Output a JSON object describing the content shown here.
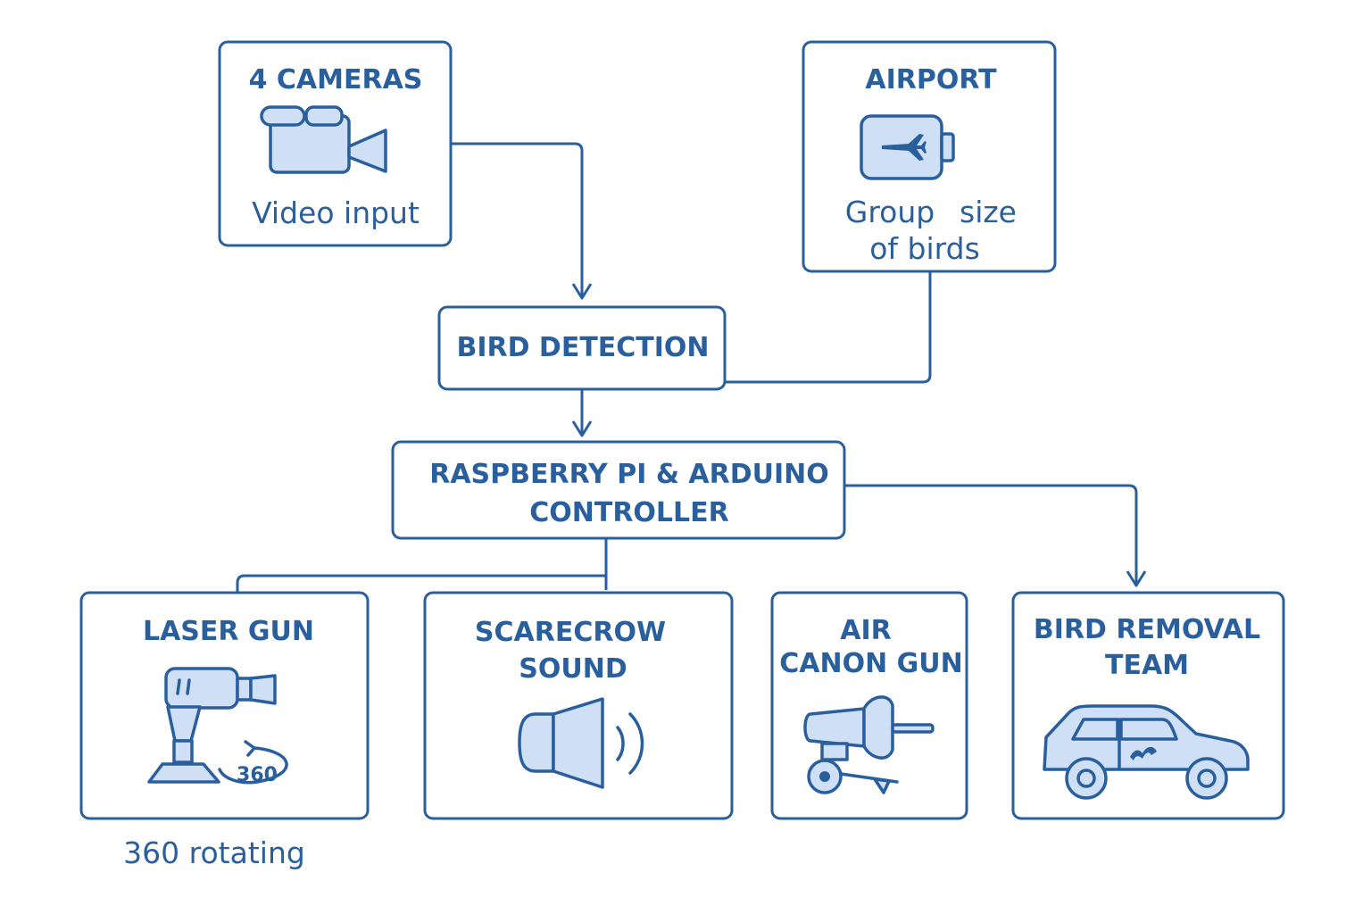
{
  "colors": {
    "stroke": "#2a5f9e",
    "icon_fill": "#cfe0f6",
    "background": "#ffffff"
  },
  "nodes": {
    "cameras": {
      "title": "4 CAMERAS",
      "subtitle": "Video input",
      "icon": "video-camera-icon"
    },
    "airport": {
      "title": "AIRPORT",
      "subtitle_line1": "Group",
      "subtitle_line1b": "size",
      "subtitle_line2": "of birds",
      "icon": "airplane-icon"
    },
    "bird_detection": {
      "title": "BIRD DETECTION"
    },
    "controller": {
      "title_line1": "RASPBERRY PI & ARDUINO",
      "title_line2": "CONTROLLER"
    },
    "laser_gun": {
      "title": "LASER GUN",
      "icon_label": "360",
      "caption": "360 rotating",
      "icon": "laser-gun-icon"
    },
    "scarecrow_sound": {
      "title_line1": "SCARECROW",
      "title_line2": "SOUND",
      "icon": "speaker-icon"
    },
    "air_canon_gun": {
      "title_line1": "AIR",
      "title_line2": "CANON GUN",
      "icon": "air-cannon-icon"
    },
    "bird_removal_team": {
      "title_line1": "BIRD REMOVAL",
      "title_line2": "TEAM",
      "icon": "car-icon"
    }
  }
}
